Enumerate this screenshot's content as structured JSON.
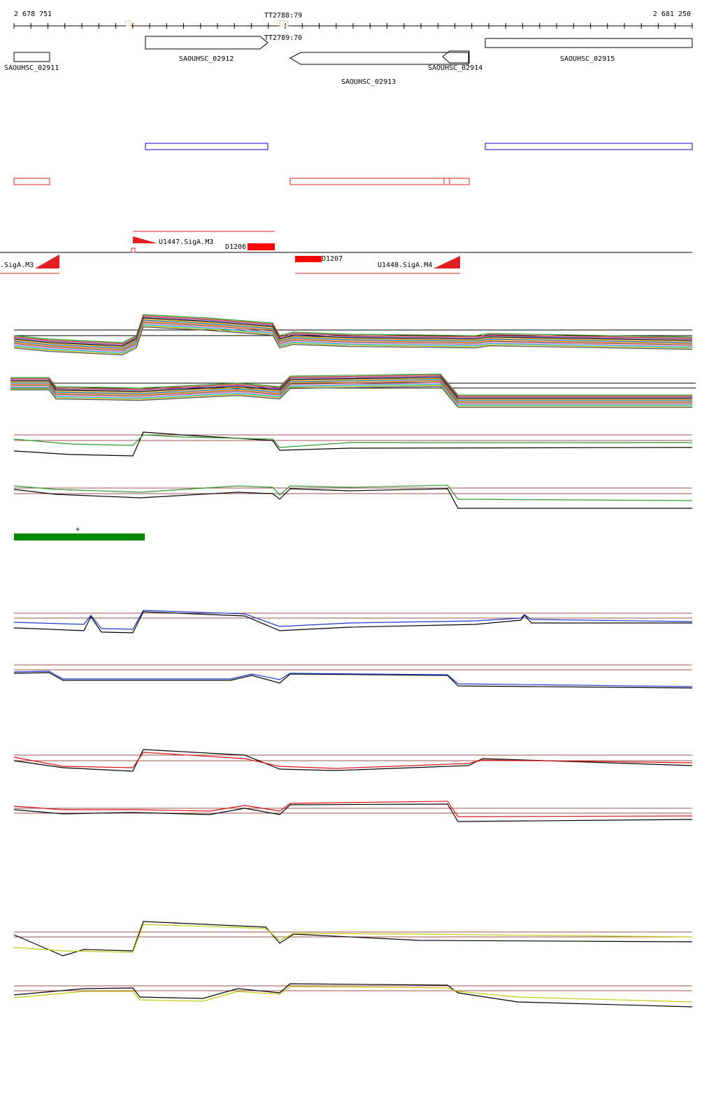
{
  "ruler": {
    "start": "2 678 751",
    "end": "2 681 250"
  },
  "terminators": {
    "upper": "TT2788:79",
    "lower": "TT2789:70"
  },
  "genes": [
    "SAOUHSC_02911",
    "SAOUHSC_02912",
    "SAOUHSC_02913",
    "SAOUHSC_02914",
    "SAOUHSC_02915"
  ],
  "promoters": {
    "p1": "U1447.SigA.M3",
    "p2": "D1206",
    "p3": ".SigA.M3",
    "p4": "D1207",
    "p5": "U1448.SigA.M4"
  },
  "marker": "+"
}
